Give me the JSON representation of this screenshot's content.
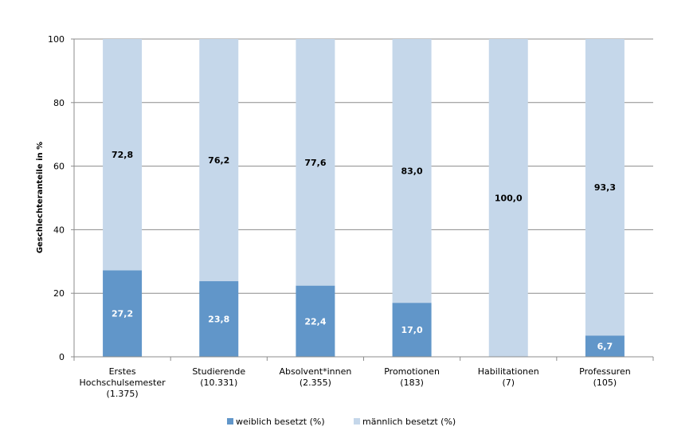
{
  "chart_data": {
    "type": "bar",
    "stacked": true,
    "ylabel": "Geschlechteranteile in %",
    "ylim": [
      0,
      100
    ],
    "yticks": [
      0,
      20,
      40,
      60,
      80,
      100
    ],
    "grid": true,
    "legend_position": "bottom",
    "categories": [
      [
        "Erstes",
        "Hochschulsemester",
        "(1.375)"
      ],
      [
        "Studierende",
        "(10.331)"
      ],
      [
        "Absolvent*innen",
        "(2.355)"
      ],
      [
        "Promotionen",
        "(183)"
      ],
      [
        "Habilitationen",
        "(7)"
      ],
      [
        "Professuren",
        "(105)"
      ]
    ],
    "series": [
      {
        "name": "weiblich besetzt (%)",
        "color": "#6196c9",
        "values": [
          27.2,
          23.8,
          22.4,
          17.0,
          0.0,
          6.7
        ],
        "labels": [
          "27,2",
          "23,8",
          "22,4",
          "17,0",
          "",
          "6,7"
        ]
      },
      {
        "name": "männlich besetzt (%)",
        "color": "#c5d7ea",
        "values": [
          72.8,
          76.2,
          77.6,
          83.0,
          100.0,
          93.3
        ],
        "labels": [
          "72,8",
          "76,2",
          "77,6",
          "83,0",
          "100,0",
          "93,3"
        ]
      }
    ]
  }
}
